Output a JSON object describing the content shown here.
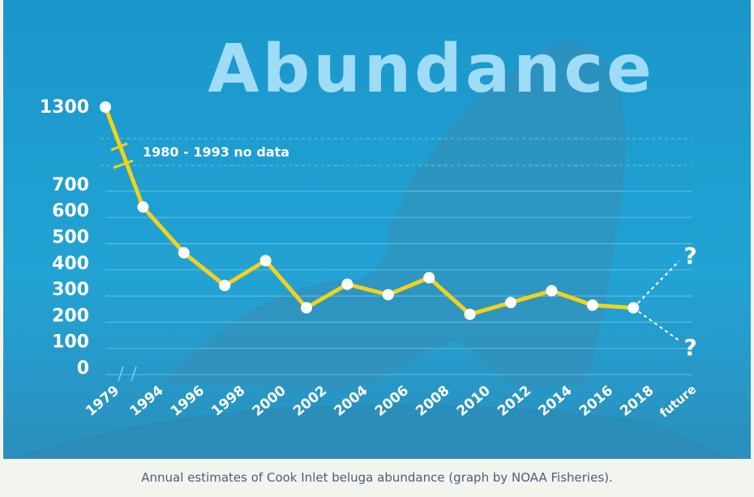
{
  "caption": "Annual estimates of Cook Inlet beluga abundance (graph by NOAA Fisheries).",
  "colors": {
    "background": "#1d9ccf",
    "line": "#f3d21a",
    "points": "#ffffff",
    "title": "#9fdcf8"
  },
  "chart_data": {
    "type": "line",
    "title": "Abundance",
    "xlabel": "",
    "ylabel": "",
    "categories": [
      "1979",
      "1994",
      "1996",
      "1998",
      "2000",
      "2002",
      "2004",
      "2006",
      "2008",
      "2010",
      "2012",
      "2014",
      "2016",
      "2018",
      "future"
    ],
    "values": [
      1300,
      640,
      465,
      340,
      435,
      255,
      345,
      305,
      370,
      230,
      275,
      320,
      265,
      255,
      null
    ],
    "y_ticks": [
      "0",
      "100",
      "200",
      "300",
      "400",
      "500",
      "600",
      "700",
      "1300"
    ],
    "ylim": [
      0,
      700
    ],
    "axis_break": {
      "label": "1980 - 1993  no data"
    },
    "future_markers": [
      "?",
      "?"
    ],
    "grid": true,
    "background": "photo of beluga whale tail"
  }
}
